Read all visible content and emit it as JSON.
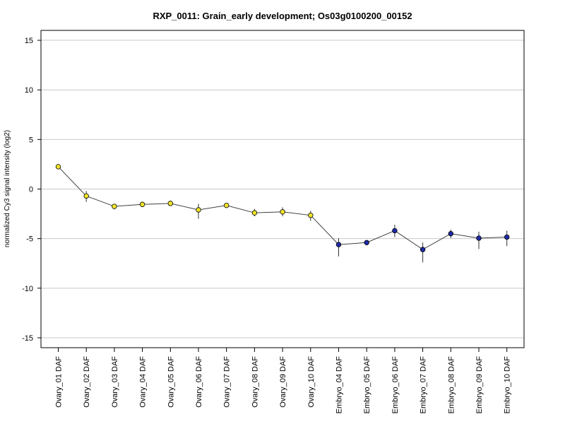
{
  "chart_data": {
    "type": "line",
    "title": "RXP_0011: Grain_early development; Os03g0100200_00152",
    "xlabel": "",
    "ylabel": "normalized Cy3 signal intensity (log2)",
    "ylim": [
      -16,
      16
    ],
    "yticks": [
      -15,
      -10,
      -5,
      0,
      5,
      10,
      15
    ],
    "grid": true,
    "categories": [
      "Ovary_01 DAF",
      "Ovary_02 DAF",
      "Ovary_03 DAF",
      "Ovary_04 DAF",
      "Ovary_05 DAF",
      "Ovary_06 DAF",
      "Ovary_07 DAF",
      "Ovary_08 DAF",
      "Ovary_09 DAF",
      "Ovary_10 DAF",
      "Embryo_04 DAF",
      "Embryo_05 DAF",
      "Embryo_06 DAF",
      "Embryo_07 DAF",
      "Embryo_08 DAF",
      "Embryo_09 DAF",
      "Embryo_10 DAF"
    ],
    "values": [
      2.25,
      -0.7,
      -1.75,
      -1.55,
      -1.45,
      -2.1,
      -1.65,
      -2.4,
      -2.3,
      -2.65,
      -5.6,
      -5.4,
      -4.2,
      -6.1,
      -4.5,
      -4.95,
      -4.85
    ],
    "error_low": [
      2.0,
      -1.3,
      -2.05,
      -1.75,
      -1.7,
      -3.0,
      -1.8,
      -2.75,
      -2.75,
      -3.2,
      -6.8,
      -5.65,
      -4.85,
      -7.4,
      -4.95,
      -6.05,
      -5.75
    ],
    "error_high": [
      2.45,
      -0.2,
      -1.5,
      -1.35,
      -1.2,
      -1.5,
      -1.45,
      -2.0,
      -1.85,
      -2.2,
      -4.95,
      -5.15,
      -3.6,
      -5.4,
      -4.1,
      -4.3,
      -4.2
    ],
    "point_colors": [
      "#f2e32a",
      "#f2e32a",
      "#f2e32a",
      "#f2e32a",
      "#f2e32a",
      "#f2e32a",
      "#f2e32a",
      "#f2e32a",
      "#f2e32a",
      "#f2e32a",
      "#1f2aa6",
      "#1f2aa6",
      "#1f2aa6",
      "#1f2aa6",
      "#1f2aa6",
      "#1f2aa6",
      "#1f2aa6"
    ],
    "line_color": "#404040",
    "grid_color": "#c8c8c8"
  }
}
